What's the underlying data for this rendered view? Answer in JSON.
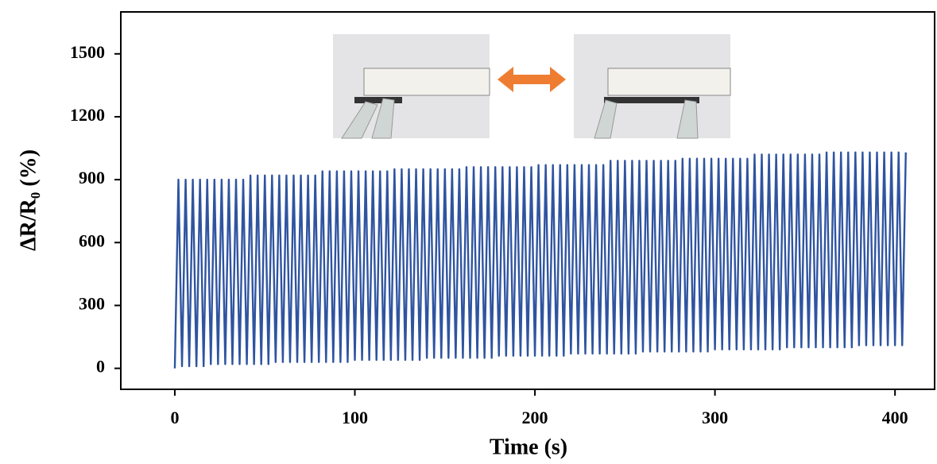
{
  "chart_data": {
    "type": "line",
    "x_label": "Time (s)",
    "y_label": "ΔR/R₀ (%)",
    "xlim": [
      -30,
      422
    ],
    "ylim": [
      -100,
      1700
    ],
    "xticks": [
      0,
      100,
      200,
      300,
      400
    ],
    "yticks": [
      0,
      300,
      600,
      900,
      1200,
      1500
    ],
    "color": "#2f54a0",
    "x": [
      0,
      2,
      4,
      6,
      8,
      10,
      12,
      14,
      16,
      18,
      20,
      22,
      24,
      26,
      28,
      30,
      32,
      34,
      36,
      38,
      40,
      42,
      44,
      46,
      48,
      50,
      52,
      54,
      56,
      58,
      60,
      62,
      64,
      66,
      68,
      70,
      72,
      74,
      76,
      78,
      80,
      82,
      84,
      86,
      88,
      90,
      92,
      94,
      96,
      98,
      100,
      102,
      104,
      106,
      108,
      110,
      112,
      114,
      116,
      118,
      120,
      122,
      124,
      126,
      128,
      130,
      132,
      134,
      136,
      138,
      140,
      142,
      144,
      146,
      148,
      150,
      152,
      154,
      156,
      158,
      160,
      162,
      164,
      166,
      168,
      170,
      172,
      174,
      176,
      178,
      180,
      182,
      184,
      186,
      188,
      190,
      192,
      194,
      196,
      198,
      200,
      202,
      204,
      206,
      208,
      210,
      212,
      214,
      216,
      218,
      220,
      222,
      224,
      226,
      228,
      230,
      232,
      234,
      236,
      238,
      240,
      242,
      244,
      246,
      248,
      250,
      252,
      254,
      256,
      258,
      260,
      262,
      264,
      266,
      268,
      270,
      272,
      274,
      276,
      278,
      280,
      282,
      284,
      286,
      288,
      290,
      292,
      294,
      296,
      298,
      300,
      302,
      304,
      306,
      308,
      310,
      312,
      314,
      316,
      318,
      320,
      322,
      324,
      326,
      328,
      330,
      332,
      334,
      336,
      338,
      340,
      342,
      344,
      346,
      348,
      350,
      352,
      354,
      356,
      358,
      360,
      362,
      364,
      366,
      368,
      370,
      372,
      374,
      376,
      378,
      380,
      382,
      384,
      386,
      388,
      390,
      392,
      394,
      396,
      398,
      400,
      402,
      404,
      406
    ],
    "values": [
      0,
      900,
      10,
      900,
      10,
      900,
      10,
      900,
      10,
      900,
      20,
      900,
      20,
      900,
      20,
      900,
      20,
      900,
      20,
      900,
      20,
      920,
      20,
      920,
      20,
      920,
      20,
      920,
      30,
      920,
      30,
      920,
      30,
      920,
      30,
      920,
      30,
      920,
      30,
      920,
      30,
      940,
      30,
      940,
      30,
      940,
      30,
      940,
      30,
      940,
      40,
      940,
      40,
      940,
      40,
      940,
      40,
      940,
      40,
      940,
      40,
      950,
      40,
      950,
      40,
      950,
      40,
      950,
      40,
      950,
      50,
      950,
      50,
      950,
      50,
      950,
      50,
      950,
      50,
      950,
      50,
      960,
      50,
      960,
      50,
      960,
      50,
      960,
      50,
      960,
      60,
      960,
      60,
      960,
      60,
      960,
      60,
      960,
      60,
      960,
      60,
      970,
      60,
      970,
      60,
      970,
      60,
      970,
      60,
      970,
      70,
      970,
      70,
      970,
      70,
      970,
      70,
      970,
      70,
      970,
      70,
      990,
      70,
      990,
      70,
      990,
      70,
      990,
      70,
      990,
      80,
      990,
      80,
      990,
      80,
      990,
      80,
      990,
      80,
      990,
      80,
      1000,
      80,
      1000,
      80,
      1000,
      80,
      1000,
      80,
      1000,
      90,
      1000,
      90,
      1000,
      90,
      1000,
      90,
      1000,
      90,
      1000,
      90,
      1020,
      90,
      1020,
      90,
      1020,
      90,
      1020,
      90,
      1020,
      100,
      1020,
      100,
      1020,
      100,
      1020,
      100,
      1020,
      100,
      1020,
      100,
      1030,
      100,
      1030,
      100,
      1030,
      100,
      1030,
      100,
      1030,
      110,
      1030,
      110,
      1030,
      110,
      1030,
      110,
      1030,
      110,
      1030,
      110,
      1030,
      110,
      1030
    ]
  }
}
